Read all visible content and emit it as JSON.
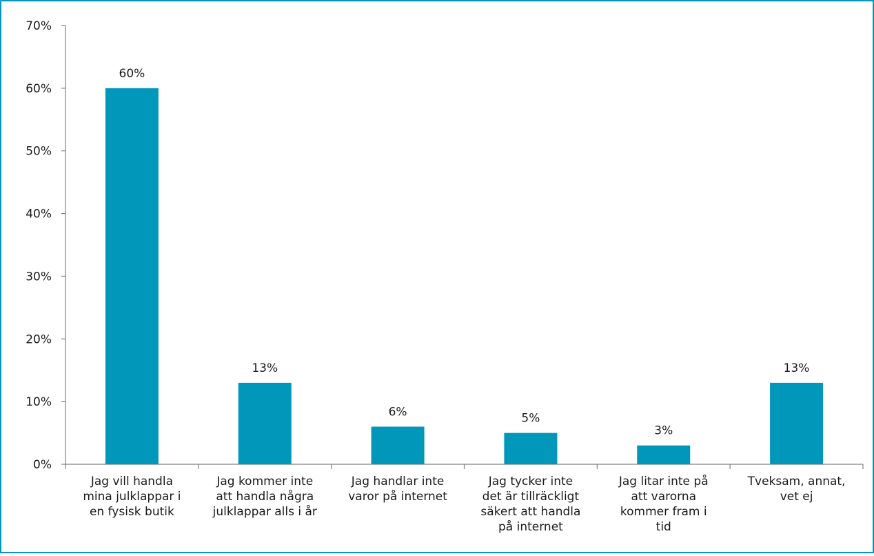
{
  "chart_data": {
    "type": "bar",
    "title": "",
    "xlabel": "",
    "ylabel": "",
    "ylim": [
      0,
      70
    ],
    "yticks": [
      "0%",
      "10%",
      "20%",
      "30%",
      "40%",
      "50%",
      "60%",
      "70%"
    ],
    "categories": [
      [
        "Jag vill handla",
        "mina julklappar i",
        "en fysisk butik"
      ],
      [
        "Jag kommer inte",
        "att handla några",
        "julklappar alls i år"
      ],
      [
        "Jag handlar inte",
        "varor på internet"
      ],
      [
        "Jag tycker inte",
        "det är tillräckligt",
        "säkert att handla",
        "på internet"
      ],
      [
        "Jag litar inte på",
        "att varorna",
        "kommer fram i",
        "tid"
      ],
      [
        "Tveksam, annat,",
        "vet ej"
      ]
    ],
    "values": [
      60,
      13,
      6,
      5,
      3,
      13
    ],
    "data_labels": [
      "60%",
      "13%",
      "6%",
      "5%",
      "3%",
      "13%"
    ],
    "grid": false,
    "bar_color": "#0097bb",
    "axis_color": "#808080",
    "frame_color": "#0097bb"
  }
}
